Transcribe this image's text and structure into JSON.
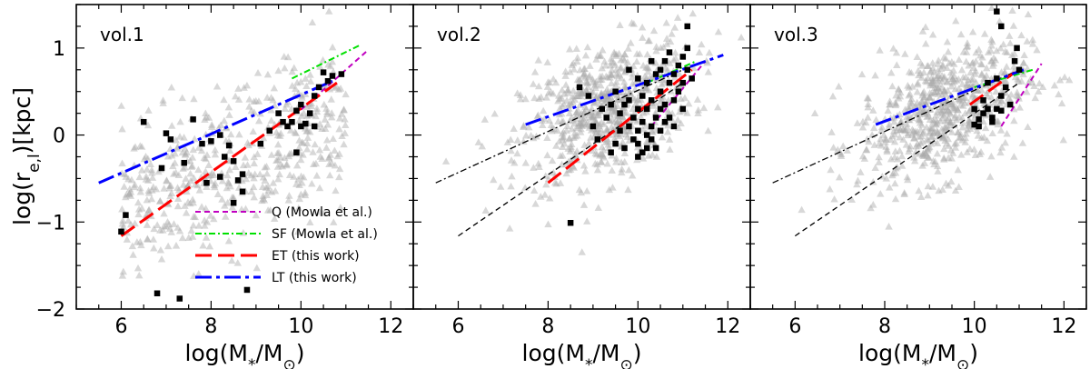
{
  "chart_data": {
    "type": "scatter",
    "shared_ylabel": "log(r_{e,l})[kpc]",
    "xlim": [
      5,
      12.5
    ],
    "ylim": [
      -2,
      1.5
    ],
    "xticks": [
      6,
      8,
      10,
      12
    ],
    "yticks": [
      -2,
      -1,
      0,
      1
    ],
    "legend_placement": "lower-center (first panel)",
    "colors": {
      "Q": "#c000c0",
      "SF": "#00e000",
      "ET": "#ff0000",
      "LT": "#0000ff",
      "background_points": "#a8a8a8",
      "sample_points": "#000000"
    },
    "legend": [
      {
        "key": "Q",
        "label": "Q (Mowla et al.)",
        "style": "dashed-thin"
      },
      {
        "key": "SF",
        "label": "SF (Mowla et al.)",
        "style": "dashdot-thin"
      },
      {
        "key": "ET",
        "label": "ET (this work)",
        "style": "dashed-thick"
      },
      {
        "key": "LT",
        "label": "LT (this work)",
        "style": "dashdot-thick"
      }
    ],
    "panels": [
      {
        "label": "vol.1",
        "xlabel": "log(M_*/M_⊙)",
        "fits": {
          "Q": [
            [
              10,
              0.29
            ],
            [
              11.5,
              0.98
            ]
          ],
          "SF": [
            [
              9.8,
              0.65
            ],
            [
              11.3,
              1.03
            ]
          ],
          "ET": [
            [
              6,
              -1.16
            ],
            [
              10.8,
              0.6
            ]
          ],
          "LT": [
            [
              5.5,
              -0.55
            ],
            [
              10.7,
              0.62
            ]
          ]
        },
        "ref_lines": [],
        "points": [
          [
            6.1,
            -0.92
          ],
          [
            6.0,
            -1.11
          ],
          [
            6.5,
            0.15
          ],
          [
            6.9,
            -0.38
          ],
          [
            7.0,
            0.02
          ],
          [
            7.1,
            -0.05
          ],
          [
            7.4,
            -0.32
          ],
          [
            7.6,
            0.18
          ],
          [
            7.8,
            -0.1
          ],
          [
            7.9,
            -0.55
          ],
          [
            8.0,
            -0.07
          ],
          [
            8.2,
            0.0
          ],
          [
            8.3,
            -0.25
          ],
          [
            8.2,
            -0.48
          ],
          [
            8.4,
            -0.12
          ],
          [
            8.5,
            -0.78
          ],
          [
            8.5,
            -0.3
          ],
          [
            8.6,
            -0.52
          ],
          [
            8.7,
            -0.65
          ],
          [
            8.8,
            -1.78
          ],
          [
            8.7,
            -0.45
          ],
          [
            9.1,
            -0.1
          ],
          [
            9.3,
            0.05
          ],
          [
            9.5,
            0.25
          ],
          [
            9.6,
            0.15
          ],
          [
            9.7,
            0.1
          ],
          [
            9.8,
            0.15
          ],
          [
            9.9,
            0.28
          ],
          [
            9.9,
            -0.2
          ],
          [
            10.0,
            0.1
          ],
          [
            10.0,
            0.35
          ],
          [
            10.1,
            0.13
          ],
          [
            10.2,
            0.25
          ],
          [
            10.3,
            0.1
          ],
          [
            10.3,
            0.45
          ],
          [
            10.4,
            0.55
          ],
          [
            10.5,
            0.72
          ],
          [
            10.6,
            0.62
          ],
          [
            10.7,
            0.68
          ],
          [
            10.9,
            0.7
          ],
          [
            6.8,
            -1.82
          ],
          [
            7.3,
            -1.88
          ]
        ]
      },
      {
        "label": "vol.2",
        "xlabel": "log(M_*/M_⊙)",
        "fits": {
          "Q": [
            [
              10.3,
              0.1
            ],
            [
              11.5,
              0.85
            ]
          ],
          "SF": [
            [
              10.2,
              0.6
            ],
            [
              11.3,
              0.85
            ]
          ],
          "ET": [
            [
              8.0,
              -0.55
            ],
            [
              11.2,
              0.75
            ]
          ],
          "LT": [
            [
              7.5,
              0.12
            ],
            [
              11.9,
              0.92
            ]
          ]
        },
        "ref_lines": [
          {
            "style": "dashdot",
            "points": [
              [
                5.5,
                -0.55
              ],
              [
                11.0,
                0.75
              ]
            ]
          },
          {
            "style": "dashed",
            "points": [
              [
                6.0,
                -1.16
              ],
              [
                11.0,
                0.6
              ]
            ]
          }
        ],
        "points": [
          [
            8.5,
            -1.01
          ],
          [
            8.7,
            0.55
          ],
          [
            8.9,
            0.45
          ],
          [
            9.0,
            0.1
          ],
          [
            9.1,
            -0.05
          ],
          [
            9.2,
            0.3
          ],
          [
            9.3,
            0.2
          ],
          [
            9.4,
            -0.2
          ],
          [
            9.5,
            0.5
          ],
          [
            9.5,
            -0.1
          ],
          [
            9.6,
            0.05
          ],
          [
            9.7,
            0.35
          ],
          [
            9.7,
            -0.15
          ],
          [
            9.8,
            0.1
          ],
          [
            9.8,
            0.4
          ],
          [
            9.9,
            -0.05
          ],
          [
            9.9,
            0.2
          ],
          [
            10.0,
            0.05
          ],
          [
            10.0,
            0.3
          ],
          [
            10.0,
            -0.1
          ],
          [
            10.1,
            0.15
          ],
          [
            10.1,
            0.45
          ],
          [
            10.1,
            -0.2
          ],
          [
            10.2,
            0.0
          ],
          [
            10.2,
            0.3
          ],
          [
            10.2,
            0.6
          ],
          [
            10.3,
            0.1
          ],
          [
            10.3,
            -0.05
          ],
          [
            10.3,
            0.4
          ],
          [
            10.4,
            0.2
          ],
          [
            10.4,
            0.7
          ],
          [
            10.4,
            -0.15
          ],
          [
            10.5,
            0.05
          ],
          [
            10.5,
            0.5
          ],
          [
            10.5,
            0.3
          ],
          [
            10.6,
            0.15
          ],
          [
            10.6,
            0.85
          ],
          [
            10.6,
            0.35
          ],
          [
            10.7,
            0.6
          ],
          [
            10.7,
            0.2
          ],
          [
            10.7,
            0.95
          ],
          [
            10.8,
            0.4
          ],
          [
            10.8,
            0.7
          ],
          [
            10.8,
            0.1
          ],
          [
            10.9,
            0.5
          ],
          [
            10.9,
            0.8
          ],
          [
            11.0,
            0.9
          ],
          [
            11.0,
            0.6
          ],
          [
            11.0,
            0.3
          ],
          [
            11.1,
            1.0
          ],
          [
            11.1,
            1.25
          ],
          [
            11.1,
            0.75
          ],
          [
            11.2,
            0.65
          ],
          [
            10.0,
            0.65
          ],
          [
            9.8,
            0.75
          ],
          [
            10.3,
            0.85
          ],
          [
            10.5,
            0.75
          ],
          [
            9.6,
            0.25
          ],
          [
            9.4,
            0.35
          ],
          [
            10.2,
            -0.15
          ],
          [
            10.0,
            -0.25
          ]
        ]
      },
      {
        "label": "vol.3",
        "xlabel": "log(M_*/M_⊙)",
        "fits": {
          "Q": [
            [
              10.6,
              0.1
            ],
            [
              11.5,
              0.82
            ]
          ],
          "SF": [
            [
              10.0,
              0.55
            ],
            [
              11.3,
              0.75
            ]
          ],
          "ET": [
            [
              9.9,
              0.35
            ],
            [
              10.9,
              0.72
            ]
          ],
          "LT": [
            [
              7.8,
              0.12
            ],
            [
              11.1,
              0.75
            ]
          ]
        },
        "ref_lines": [
          {
            "style": "dashdot",
            "points": [
              [
                5.5,
                -0.55
              ],
              [
                11.0,
                0.75
              ]
            ]
          },
          {
            "style": "dashed",
            "points": [
              [
                6.0,
                -1.16
              ],
              [
                11.0,
                0.6
              ]
            ]
          }
        ],
        "points": [
          [
            10.0,
            0.12
          ],
          [
            10.0,
            0.3
          ],
          [
            10.1,
            0.18
          ],
          [
            10.1,
            0.1
          ],
          [
            10.2,
            0.25
          ],
          [
            10.2,
            0.4
          ],
          [
            10.3,
            0.3
          ],
          [
            10.3,
            0.6
          ],
          [
            10.4,
            0.15
          ],
          [
            10.4,
            0.2
          ],
          [
            10.5,
            0.3
          ],
          [
            10.5,
            0.65
          ],
          [
            10.5,
            1.42
          ],
          [
            10.6,
            0.45
          ],
          [
            10.6,
            1.25
          ],
          [
            10.6,
            0.28
          ],
          [
            10.7,
            0.55
          ],
          [
            10.8,
            0.35
          ],
          [
            10.9,
            0.85
          ],
          [
            11.0,
            0.75
          ],
          [
            10.95,
            1.0
          ]
        ]
      }
    ]
  }
}
